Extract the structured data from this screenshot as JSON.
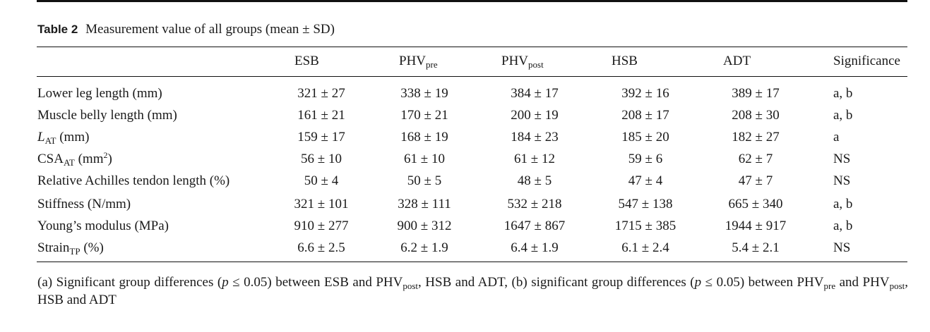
{
  "table": {
    "label": "Table 2",
    "caption": "Measurement value of all groups (mean ± SD)",
    "columns": {
      "esb": "ESB",
      "phv_pre_main": "PHV",
      "phv_pre_sub": "pre",
      "phv_post_main": "PHV",
      "phv_post_sub": "post",
      "hsb": "HSB",
      "adt": "ADT",
      "significance": "Significance"
    },
    "rows": [
      {
        "label": "Lower leg length (mm)",
        "esb": "321 ± 27",
        "phv_pre": "338 ± 19",
        "phv_post": "384 ± 17",
        "hsb": "392 ± 16",
        "adt": "389 ± 17",
        "sig": "a, b"
      },
      {
        "label": "Muscle belly length (mm)",
        "esb": "161 ± 21",
        "phv_pre": "170 ± 21",
        "phv_post": "200 ± 19",
        "hsb": "208 ± 17",
        "adt": "208 ± 30",
        "sig": "a, b"
      },
      {
        "label_main": "L",
        "label_sub": "AT",
        "label_rest": " (mm)",
        "esb": "159 ± 17",
        "phv_pre": "168 ± 19",
        "phv_post": "184 ± 23",
        "hsb": "185 ± 20",
        "adt": "182 ± 27",
        "sig": "a"
      },
      {
        "label_main": "CSA",
        "label_sub": "AT",
        "label_rest": " (mm",
        "label_sup": "2",
        "label_close": ")",
        "esb": "56 ± 10",
        "phv_pre": "61 ± 10",
        "phv_post": "61 ± 12",
        "hsb": "59 ± 6",
        "adt": "62 ± 7",
        "sig": "NS"
      },
      {
        "label": "Relative Achilles tendon length (%)",
        "esb": "50 ± 4",
        "phv_pre": "50 ± 5",
        "phv_post": "48 ± 5",
        "hsb": "47 ± 4",
        "adt": "47 ± 7",
        "sig": "NS"
      },
      {
        "label": "Stiffness (N/mm)",
        "esb": "321 ± 101",
        "phv_pre": "328 ± 111",
        "phv_post": "532 ± 218",
        "hsb": "547 ± 138",
        "adt": "665 ± 340",
        "sig": "a, b"
      },
      {
        "label": "Young’s modulus (MPa)",
        "esb": "910 ± 277",
        "phv_pre": "900 ± 312",
        "phv_post": "1647 ± 867",
        "hsb": "1715 ± 385",
        "adt": "1944 ± 917",
        "sig": "a, b"
      },
      {
        "label_main": "Strain",
        "label_sub": "TP",
        "label_rest": " (%)",
        "esb": "6.6 ± 2.5",
        "phv_pre": "6.2 ± 1.9",
        "phv_post": "6.4 ± 1.9",
        "hsb": "6.1 ± 2.4",
        "adt": "5.4 ± 2.1",
        "sig": "NS"
      }
    ],
    "footnote": {
      "a_open": "(a) Significant group differences (",
      "p1": "p",
      "a_cond": " ≤ 0.05) between ESB and PHV",
      "a_sub_post": "post",
      "a_rest": ", HSB and ADT, (b) significant group differences (",
      "p2": "p",
      "b_cond": " ≤ 0.05) between PHV",
      "b_sub_pre": "pre",
      "b_mid": " and PHV",
      "b_sub_post": "post",
      "b_rest": ", HSB and ADT"
    }
  }
}
